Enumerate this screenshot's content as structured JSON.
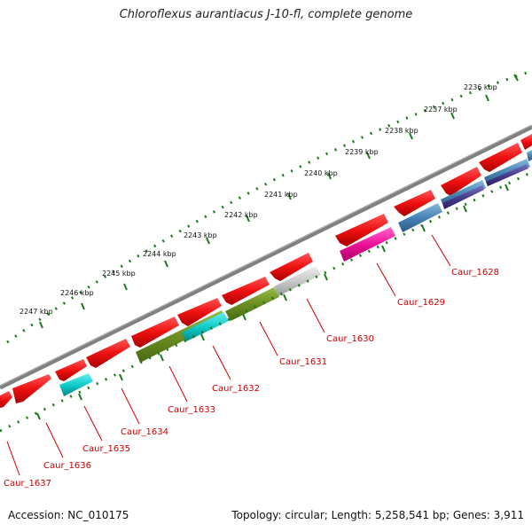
{
  "title": "Chloroflexus aurantiacus J-10-fl, complete genome",
  "footer": {
    "accession": "Accession: NC_010175",
    "summary": "Topology: circular; Length: 5,258,541 bp; Genes: 3,911"
  },
  "ruler": {
    "labels": [
      "2236 kbp",
      "2237 kbp",
      "2238 kbp",
      "2239 kbp",
      "2240 kbp",
      "2241 kbp",
      "2242 kbp",
      "2243 kbp",
      "2244 kbp",
      "2245 kbp",
      "2246 kbp",
      "2247 kbp"
    ]
  },
  "colors": {
    "red": "#ee1111",
    "cyan": "#11cccc",
    "olive": "#6b8e23",
    "gray": "#c8c8c8",
    "magenta": "#ee1199",
    "steelblue": "#4682b4",
    "darkslateblue": "#483d8b",
    "backbone": "#808080",
    "tick": "#1a7a1a",
    "label": "#cc0000"
  },
  "gene_labels": [
    "Caur_1628",
    "Caur_1629",
    "Caur_1630",
    "Caur_1631",
    "Caur_1632",
    "Caur_1633",
    "Caur_1634",
    "Caur_1635",
    "Caur_1636",
    "Caur_1637"
  ]
}
